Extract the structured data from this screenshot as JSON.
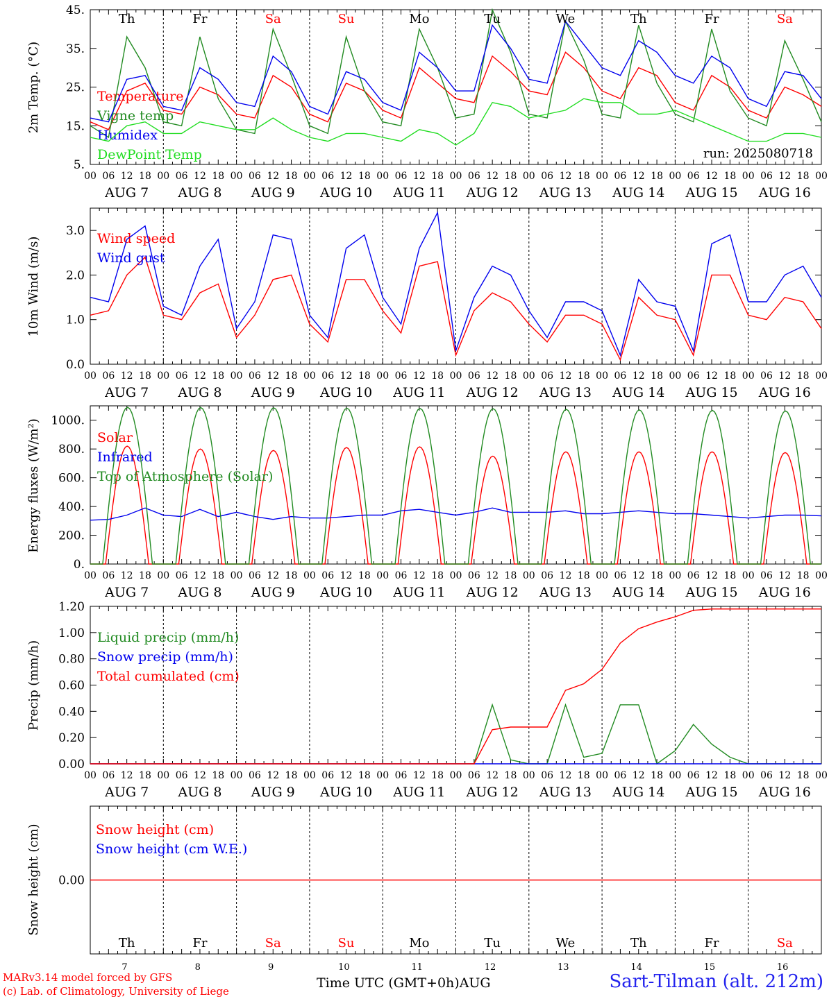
{
  "footer": {
    "model_line": "MARv3.14 model forced by GFS",
    "credit_line": "(c) Lab. of Climatology, University of Liege",
    "time_axis_title": "Time UTC (GMT+0h)",
    "month_label": "AUG",
    "station": "Sart-Tilman (alt. 212m)"
  },
  "days": {
    "weekdays": [
      "Th",
      "Fr",
      "Sa",
      "Su",
      "Mo",
      "Tu",
      "We",
      "Th",
      "Fr",
      "Sa"
    ],
    "weekend_flags": [
      false,
      false,
      true,
      true,
      false,
      false,
      false,
      false,
      false,
      true
    ],
    "dates": [
      "AUG  7",
      "AUG  8",
      "AUG  9",
      "AUG 10",
      "AUG 11",
      "AUG 12",
      "AUG 13",
      "AUG 14",
      "AUG 15",
      "AUG 16"
    ],
    "day_numbers": [
      "7",
      "8",
      "9",
      "10",
      "11",
      "12",
      "13",
      "14",
      "15",
      "16"
    ],
    "hour_labels": [
      "00",
      "06",
      "12",
      "18"
    ],
    "final_hour_label": "00"
  },
  "colors": {
    "red": "#ff0000",
    "green": "#228b22",
    "blue": "#0000ee",
    "lightgreen": "#22dd22",
    "weekend": "#ff0000",
    "station": "#2222ee"
  },
  "chart_data": [
    {
      "type": "line",
      "id": "temp",
      "ylabel": "2m Temp. (°C)",
      "ylim": [
        5,
        45
      ],
      "yticks": [
        "5.",
        "15.",
        "25.",
        "35.",
        "45."
      ],
      "run_label": "run: 2025080718",
      "series": [
        {
          "name": "Temperature",
          "color": "red",
          "values": [
            16,
            14,
            24,
            26,
            19,
            18,
            25,
            23,
            18,
            17,
            28,
            25,
            18,
            16,
            26,
            24,
            19,
            17,
            30,
            26,
            22,
            21,
            33,
            29,
            24,
            23,
            34,
            30,
            24,
            22,
            30,
            28,
            21,
            19,
            28,
            25,
            19,
            17,
            25,
            23,
            20
          ]
        },
        {
          "name": "Vigne temp",
          "color": "green",
          "values": [
            15,
            12,
            38,
            30,
            16,
            15,
            38,
            22,
            14,
            13,
            40,
            28,
            15,
            13,
            38,
            24,
            16,
            15,
            40,
            30,
            17,
            18,
            45,
            34,
            18,
            17,
            42,
            32,
            18,
            17,
            41,
            26,
            18,
            16,
            40,
            24,
            17,
            15,
            37,
            27,
            16
          ]
        },
        {
          "name": "Humidex",
          "color": "blue",
          "values": [
            17,
            16,
            27,
            28,
            20,
            19,
            30,
            27,
            21,
            20,
            33,
            29,
            20,
            18,
            29,
            27,
            21,
            19,
            34,
            30,
            24,
            24,
            41,
            35,
            27,
            26,
            42,
            36,
            30,
            28,
            37,
            34,
            28,
            26,
            33,
            30,
            22,
            20,
            29,
            28,
            22
          ]
        },
        {
          "name": "DewPoint Temp",
          "color": "lightgreen",
          "values": [
            12,
            11,
            15,
            16,
            13,
            13,
            16,
            15,
            14,
            14,
            17,
            14,
            12,
            11,
            13,
            13,
            12,
            11,
            14,
            13,
            10,
            13,
            21,
            20,
            17,
            18,
            19,
            22,
            21,
            21,
            18,
            18,
            19,
            17,
            15,
            13,
            11,
            11,
            13,
            13,
            12
          ]
        }
      ]
    },
    {
      "type": "line",
      "id": "wind",
      "ylabel": "10m Wind (m/s)",
      "ylim": [
        0,
        3.5
      ],
      "yticks": [
        "0.0",
        "1.0",
        "2.0",
        "3.0"
      ],
      "series": [
        {
          "name": "Wind speed",
          "color": "red",
          "values": [
            1.1,
            1.2,
            2.0,
            2.4,
            1.1,
            1.0,
            1.6,
            1.8,
            0.6,
            1.1,
            1.9,
            2.0,
            0.9,
            0.5,
            1.9,
            1.9,
            1.2,
            0.7,
            2.2,
            2.3,
            0.2,
            1.2,
            1.6,
            1.4,
            0.9,
            0.5,
            1.1,
            1.1,
            0.9,
            0.1,
            1.5,
            1.1,
            1.0,
            0.2,
            2.0,
            2.0,
            1.1,
            1.0,
            1.5,
            1.4,
            0.8
          ]
        },
        {
          "name": "Wind gust",
          "color": "blue",
          "values": [
            1.5,
            1.4,
            2.8,
            3.1,
            1.3,
            1.1,
            2.2,
            2.8,
            0.8,
            1.4,
            2.9,
            2.8,
            1.1,
            0.6,
            2.6,
            2.9,
            1.5,
            0.9,
            2.6,
            3.4,
            0.3,
            1.5,
            2.2,
            2.0,
            1.2,
            0.6,
            1.4,
            1.4,
            1.2,
            0.2,
            1.9,
            1.4,
            1.3,
            0.3,
            2.7,
            2.9,
            1.4,
            1.4,
            2.0,
            2.2,
            1.5
          ]
        }
      ]
    },
    {
      "type": "line",
      "id": "energy",
      "ylabel": "Energy fluxes (W/m²)",
      "ylim": [
        0,
        1100
      ],
      "yticks": [
        "0.",
        "200.",
        "400.",
        "600.",
        "800.",
        "1000."
      ],
      "series": [
        {
          "name": "Solar",
          "color": "red",
          "peak": "solar",
          "values": [
            820,
            800,
            790,
            810,
            815,
            750,
            780,
            780,
            780,
            775
          ]
        },
        {
          "name": "Infrared",
          "color": "blue",
          "values": [
            305,
            310,
            340,
            390,
            340,
            330,
            380,
            330,
            360,
            330,
            310,
            330,
            320,
            320,
            330,
            340,
            340,
            370,
            380,
            360,
            340,
            360,
            390,
            360,
            360,
            360,
            370,
            350,
            350,
            360,
            370,
            360,
            350,
            350,
            340,
            330,
            320,
            330,
            340,
            340,
            335
          ]
        },
        {
          "name": "Top of Atmosphere (Solar)",
          "color": "green",
          "peak": "toa",
          "values": [
            1090,
            1088,
            1086,
            1084,
            1082,
            1080,
            1076,
            1072,
            1068,
            1064
          ]
        }
      ]
    },
    {
      "type": "line",
      "id": "precip",
      "ylabel": "Precip (mm/h)",
      "ylim": [
        0,
        1.2
      ],
      "yticks": [
        "0.00",
        "0.20",
        "0.40",
        "0.60",
        "0.80",
        "1.00",
        "1.20"
      ],
      "series": [
        {
          "name": "Liquid precip (mm/h)",
          "color": "green",
          "values": [
            0,
            0,
            0,
            0,
            0,
            0,
            0,
            0,
            0,
            0,
            0,
            0,
            0,
            0,
            0,
            0,
            0,
            0,
            0,
            0,
            0,
            0,
            0.45,
            0.03,
            0,
            0,
            0.45,
            0.05,
            0.08,
            0.45,
            0.45,
            0,
            0.1,
            0.3,
            0.15,
            0.05,
            0,
            0,
            0,
            0,
            0
          ]
        },
        {
          "name": "Snow precip (mm/h)",
          "color": "blue",
          "values": [
            0,
            0,
            0,
            0,
            0,
            0,
            0,
            0,
            0,
            0,
            0,
            0,
            0,
            0,
            0,
            0,
            0,
            0,
            0,
            0,
            0,
            0,
            0,
            0,
            0,
            0,
            0,
            0,
            0,
            0,
            0,
            0,
            0,
            0,
            0,
            0,
            0,
            0,
            0,
            0,
            0
          ]
        },
        {
          "name": "Total cumulated (cm)",
          "color": "red",
          "values": [
            0,
            0,
            0,
            0,
            0,
            0,
            0,
            0,
            0,
            0,
            0,
            0,
            0,
            0,
            0,
            0,
            0,
            0,
            0,
            0,
            0,
            0,
            0.26,
            0.28,
            0.28,
            0.28,
            0.56,
            0.61,
            0.72,
            0.92,
            1.03,
            1.08,
            1.12,
            1.17,
            1.18,
            1.18,
            1.18,
            1.18,
            1.18,
            1.18,
            1.18
          ]
        }
      ]
    },
    {
      "type": "line",
      "id": "snow",
      "ylabel": "Snow height (cm)",
      "ylim": [
        -1,
        1
      ],
      "yticks": [
        "0.00"
      ],
      "series": [
        {
          "name": "Snow height (cm)",
          "color": "red",
          "values": [
            0,
            0
          ]
        },
        {
          "name": "Snow height (cm W.E.)",
          "color": "blue",
          "values": []
        }
      ]
    }
  ]
}
